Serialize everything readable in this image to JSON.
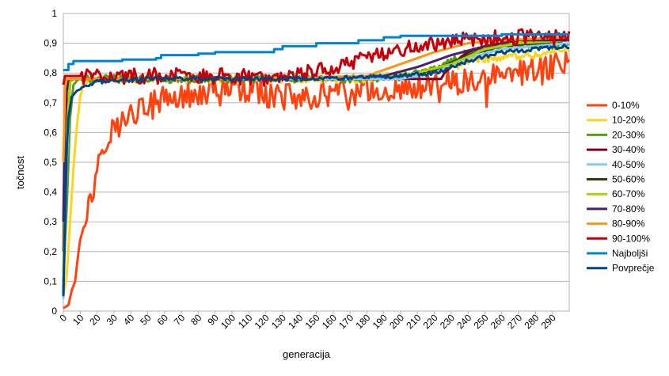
{
  "chart_data": {
    "type": "line",
    "xlabel": "generacija",
    "ylabel": "točnost",
    "xlim": [
      0,
      300
    ],
    "ylim": [
      0,
      1
    ],
    "grid": true,
    "legend_position": "right",
    "x_ticks": [
      0,
      10,
      20,
      30,
      40,
      50,
      60,
      70,
      80,
      90,
      100,
      110,
      120,
      130,
      140,
      150,
      160,
      170,
      180,
      190,
      200,
      210,
      220,
      230,
      240,
      250,
      260,
      270,
      280,
      290
    ],
    "y_ticks": [
      {
        "value": 0,
        "label": "0"
      },
      {
        "value": 0.1,
        "label": "0,1"
      },
      {
        "value": 0.2,
        "label": "0,2"
      },
      {
        "value": 0.3,
        "label": "0,3"
      },
      {
        "value": 0.4,
        "label": "0,4"
      },
      {
        "value": 0.5,
        "label": "0,5"
      },
      {
        "value": 0.6,
        "label": "0,6"
      },
      {
        "value": 0.7,
        "label": "0,7"
      },
      {
        "value": 0.8,
        "label": "0,8"
      },
      {
        "value": 0.9,
        "label": "0,9"
      },
      {
        "value": 1,
        "label": "1"
      }
    ],
    "series": [
      {
        "name": "0-10%",
        "color": "#ff420e",
        "width": 3,
        "noisy": 1.0,
        "points": [
          [
            0,
            0.01
          ],
          [
            3,
            0.02
          ],
          [
            5,
            0.07
          ],
          [
            7,
            0.1
          ],
          [
            9,
            0.2
          ],
          [
            11,
            0.28
          ],
          [
            13,
            0.33
          ],
          [
            15,
            0.35
          ],
          [
            17,
            0.38
          ],
          [
            19,
            0.45
          ],
          [
            21,
            0.52
          ],
          [
            23,
            0.55
          ],
          [
            25,
            0.58
          ],
          [
            28,
            0.6
          ],
          [
            32,
            0.62
          ],
          [
            36,
            0.64
          ],
          [
            40,
            0.66
          ],
          [
            45,
            0.68
          ],
          [
            50,
            0.69
          ],
          [
            60,
            0.71
          ],
          [
            70,
            0.72
          ],
          [
            80,
            0.73
          ],
          [
            90,
            0.75
          ],
          [
            100,
            0.75
          ],
          [
            110,
            0.74
          ],
          [
            120,
            0.73
          ],
          [
            130,
            0.72
          ],
          [
            140,
            0.72
          ],
          [
            150,
            0.72
          ],
          [
            160,
            0.73
          ],
          [
            170,
            0.73
          ],
          [
            180,
            0.74
          ],
          [
            190,
            0.74
          ],
          [
            200,
            0.75
          ],
          [
            210,
            0.75
          ],
          [
            220,
            0.76
          ],
          [
            230,
            0.77
          ],
          [
            240,
            0.77
          ],
          [
            250,
            0.78
          ],
          [
            260,
            0.79
          ],
          [
            270,
            0.8
          ],
          [
            280,
            0.81
          ],
          [
            290,
            0.82
          ],
          [
            300,
            0.84
          ]
        ]
      },
      {
        "name": "10-20%",
        "color": "#ffd320",
        "width": 3,
        "noisy": 0.3,
        "points": [
          [
            0,
            0.05
          ],
          [
            2,
            0.12
          ],
          [
            4,
            0.3
          ],
          [
            6,
            0.48
          ],
          [
            8,
            0.62
          ],
          [
            10,
            0.72
          ],
          [
            12,
            0.77
          ],
          [
            15,
            0.78
          ],
          [
            50,
            0.78
          ],
          [
            100,
            0.78
          ],
          [
            150,
            0.78
          ],
          [
            170,
            0.78
          ],
          [
            180,
            0.78
          ],
          [
            190,
            0.79
          ],
          [
            200,
            0.79
          ],
          [
            210,
            0.8
          ],
          [
            220,
            0.81
          ],
          [
            230,
            0.82
          ],
          [
            240,
            0.84
          ],
          [
            250,
            0.85
          ],
          [
            260,
            0.85
          ],
          [
            270,
            0.86
          ],
          [
            280,
            0.86
          ],
          [
            290,
            0.87
          ],
          [
            300,
            0.88
          ]
        ]
      },
      {
        "name": "20-30%",
        "color": "#579d1c",
        "width": 3,
        "noisy": 0.3,
        "points": [
          [
            0,
            0.1
          ],
          [
            2,
            0.35
          ],
          [
            4,
            0.65
          ],
          [
            6,
            0.76
          ],
          [
            9,
            0.78
          ],
          [
            50,
            0.78
          ],
          [
            100,
            0.78
          ],
          [
            150,
            0.78
          ],
          [
            180,
            0.78
          ],
          [
            190,
            0.78
          ],
          [
            200,
            0.79
          ],
          [
            210,
            0.8
          ],
          [
            220,
            0.81
          ],
          [
            230,
            0.84
          ],
          [
            240,
            0.87
          ],
          [
            250,
            0.88
          ],
          [
            260,
            0.89
          ],
          [
            270,
            0.89
          ],
          [
            280,
            0.89
          ],
          [
            290,
            0.89
          ],
          [
            300,
            0.9
          ]
        ]
      },
      {
        "name": "30-40%",
        "color": "#7e0021",
        "width": 3,
        "noisy": 0,
        "points": [
          [
            0,
            0.2
          ],
          [
            1,
            0.5
          ],
          [
            2,
            0.74
          ],
          [
            4,
            0.78
          ],
          [
            50,
            0.78
          ],
          [
            100,
            0.78
          ],
          [
            150,
            0.78
          ],
          [
            190,
            0.78
          ],
          [
            200,
            0.78
          ],
          [
            210,
            0.78
          ],
          [
            220,
            0.78
          ],
          [
            224,
            0.78
          ],
          [
            226,
            0.8
          ],
          [
            230,
            0.82
          ],
          [
            235,
            0.85
          ],
          [
            240,
            0.87
          ],
          [
            250,
            0.89
          ],
          [
            260,
            0.9
          ],
          [
            270,
            0.91
          ],
          [
            280,
            0.91
          ],
          [
            290,
            0.91
          ],
          [
            300,
            0.92
          ]
        ]
      },
      {
        "name": "40-50%",
        "color": "#83caff",
        "width": 3,
        "noisy": 0,
        "points": [
          [
            0,
            0.04
          ],
          [
            2,
            0.5
          ],
          [
            4,
            0.77
          ],
          [
            6,
            0.78
          ],
          [
            100,
            0.78
          ],
          [
            200,
            0.78
          ],
          [
            220,
            0.8
          ],
          [
            240,
            0.85
          ],
          [
            260,
            0.88
          ],
          [
            280,
            0.89
          ],
          [
            300,
            0.9
          ]
        ]
      },
      {
        "name": "50-60%",
        "color": "#314004",
        "width": 3,
        "noisy": 0,
        "points": [
          [
            0,
            0.06
          ],
          [
            2,
            0.55
          ],
          [
            4,
            0.77
          ],
          [
            6,
            0.78
          ],
          [
            100,
            0.78
          ],
          [
            200,
            0.79
          ],
          [
            220,
            0.81
          ],
          [
            240,
            0.86
          ],
          [
            260,
            0.89
          ],
          [
            280,
            0.9
          ],
          [
            300,
            0.91
          ]
        ]
      },
      {
        "name": "60-70%",
        "color": "#aecf00",
        "width": 3,
        "noisy": 0,
        "points": [
          [
            0,
            0.13
          ],
          [
            2,
            0.6
          ],
          [
            4,
            0.77
          ],
          [
            6,
            0.78
          ],
          [
            100,
            0.78
          ],
          [
            190,
            0.79
          ],
          [
            210,
            0.8
          ],
          [
            230,
            0.83
          ],
          [
            250,
            0.88
          ],
          [
            270,
            0.9
          ],
          [
            300,
            0.91
          ]
        ]
      },
      {
        "name": "70-80%",
        "color": "#4b1f6f",
        "width": 3,
        "noisy": 0,
        "points": [
          [
            0,
            0.3
          ],
          [
            1,
            0.7
          ],
          [
            3,
            0.78
          ],
          [
            100,
            0.78
          ],
          [
            190,
            0.79
          ],
          [
            210,
            0.82
          ],
          [
            230,
            0.86
          ],
          [
            250,
            0.89
          ],
          [
            270,
            0.91
          ],
          [
            300,
            0.91
          ]
        ]
      },
      {
        "name": "80-90%",
        "color": "#ff950e",
        "width": 3,
        "noisy": 0,
        "points": [
          [
            0,
            0.5
          ],
          [
            1,
            0.75
          ],
          [
            2,
            0.78
          ],
          [
            100,
            0.78
          ],
          [
            180,
            0.79
          ],
          [
            200,
            0.83
          ],
          [
            220,
            0.87
          ],
          [
            240,
            0.9
          ],
          [
            260,
            0.91
          ],
          [
            300,
            0.92
          ]
        ]
      },
      {
        "name": "90-100%",
        "color": "#c5000b",
        "width": 3,
        "noisy": 0.6,
        "points": [
          [
            0,
            0.76
          ],
          [
            1,
            0.79
          ],
          [
            20,
            0.79
          ],
          [
            50,
            0.79
          ],
          [
            100,
            0.79
          ],
          [
            120,
            0.78
          ],
          [
            130,
            0.78
          ],
          [
            140,
            0.79
          ],
          [
            150,
            0.81
          ],
          [
            160,
            0.82
          ],
          [
            170,
            0.83
          ],
          [
            180,
            0.85
          ],
          [
            190,
            0.87
          ],
          [
            200,
            0.88
          ],
          [
            210,
            0.89
          ],
          [
            220,
            0.9
          ],
          [
            230,
            0.91
          ],
          [
            240,
            0.91
          ],
          [
            260,
            0.92
          ],
          [
            280,
            0.92
          ],
          [
            300,
            0.92
          ]
        ]
      },
      {
        "name": "Najboljši",
        "color": "#0084d1",
        "width": 3,
        "noisy": 0,
        "step": true,
        "points": [
          [
            0,
            0.81
          ],
          [
            3,
            0.83
          ],
          [
            6,
            0.84
          ],
          [
            20,
            0.84
          ],
          [
            35,
            0.845
          ],
          [
            55,
            0.85
          ],
          [
            58,
            0.86
          ],
          [
            80,
            0.865
          ],
          [
            90,
            0.87
          ],
          [
            125,
            0.88
          ],
          [
            130,
            0.89
          ],
          [
            140,
            0.89
          ],
          [
            150,
            0.9
          ],
          [
            175,
            0.91
          ],
          [
            190,
            0.92
          ],
          [
            200,
            0.925
          ],
          [
            260,
            0.93
          ],
          [
            300,
            0.93
          ]
        ]
      },
      {
        "name": "Povprečje",
        "color": "#004586",
        "width": 3,
        "noisy": 0.15,
        "points": [
          [
            0,
            0.05
          ],
          [
            1,
            0.3
          ],
          [
            2,
            0.55
          ],
          [
            3,
            0.65
          ],
          [
            5,
            0.72
          ],
          [
            8,
            0.74
          ],
          [
            12,
            0.75
          ],
          [
            20,
            0.77
          ],
          [
            30,
            0.775
          ],
          [
            50,
            0.78
          ],
          [
            100,
            0.78
          ],
          [
            150,
            0.78
          ],
          [
            180,
            0.785
          ],
          [
            200,
            0.79
          ],
          [
            220,
            0.8
          ],
          [
            240,
            0.84
          ],
          [
            260,
            0.87
          ],
          [
            280,
            0.88
          ],
          [
            300,
            0.89
          ]
        ]
      }
    ]
  }
}
